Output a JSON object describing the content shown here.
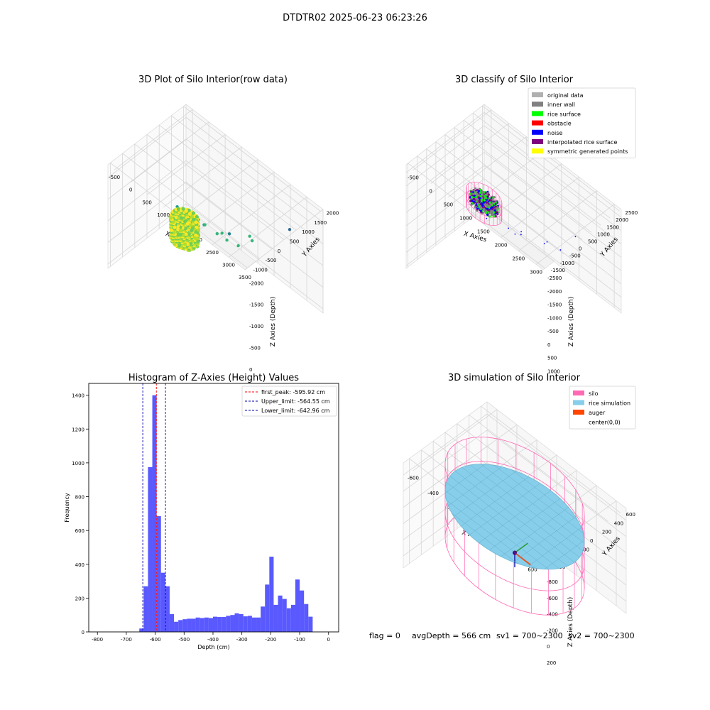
{
  "figure": {
    "title": "DTDTR02 2025-06-23 06:23:26",
    "status": {
      "flag": "flag = 0",
      "avg_depth": "avgDepth = 566 cm",
      "sv1": "sv1 = 700~2300",
      "sv2": "sv2 = 700~2300"
    }
  },
  "chart_data": [
    {
      "type": "scatter",
      "projection": "3d",
      "title": "3D Plot of Silo Interior(row data)",
      "xlabel": "X Axies",
      "ylabel": "Y Axies",
      "zlabel": "Z Axies (Depth)",
      "x_ticks": [
        "-500",
        "0",
        "500",
        "1000",
        "1500",
        "2000",
        "2500",
        "3000",
        "3500"
      ],
      "y_ticks": [
        "-1000",
        "-500",
        "0",
        "500",
        "1000",
        "1500",
        "2000"
      ],
      "z_ticks": [
        "-2000",
        "-1500",
        "-1000",
        "-500",
        "0"
      ],
      "xlim": [
        -700,
        3500
      ],
      "ylim": [
        -1100,
        2100
      ],
      "zlim": [
        -2300,
        100
      ],
      "colormap": [
        "#fde725",
        "#b5de2b",
        "#6ece58",
        "#35b779",
        "#1f9e89",
        "#26828e",
        "#31688e"
      ],
      "points": [
        {
          "x": 1200,
          "y": 300,
          "z": -1400
        },
        {
          "x": 1450,
          "y": 500,
          "z": -1250
        },
        {
          "x": 1600,
          "y": 700,
          "z": -1100
        },
        {
          "x": 1800,
          "y": 900,
          "z": -1000
        },
        {
          "x": 2000,
          "y": 1200,
          "z": -1100
        },
        {
          "x": 1400,
          "y": -200,
          "z": -1700
        },
        {
          "x": 2200,
          "y": 0,
          "z": -1900
        },
        {
          "x": 3300,
          "y": 1000,
          "z": -2200
        },
        {
          "x": 600,
          "y": 0,
          "z": -1600
        },
        {
          "x": 900,
          "y": 300,
          "z": -1300
        },
        {
          "x": 1300,
          "y": 900,
          "z": -1000
        },
        {
          "x": 1700,
          "y": 1500,
          "z": -900
        },
        {
          "x": 1000,
          "y": 600,
          "z": -1150
        },
        {
          "x": 1100,
          "y": 200,
          "z": -1500
        }
      ]
    },
    {
      "type": "scatter",
      "projection": "3d",
      "title": "3D classify of Silo Interior",
      "xlabel": "X Axies",
      "ylabel": "Y Axies",
      "zlabel": "Z Axies (Depth)",
      "x_ticks": [
        "-500",
        "0",
        "500",
        "1000",
        "1500",
        "2000",
        "2500",
        "3000"
      ],
      "y_ticks": [
        "-1500",
        "-1000",
        "-500",
        "0",
        "500",
        "1000",
        "1500",
        "2000",
        "2500"
      ],
      "z_ticks": [
        "-2500",
        "-2000",
        "-1500",
        "-1000",
        "-500",
        "0",
        "500",
        "1000"
      ],
      "xlim": [
        -700,
        3200
      ],
      "ylim": [
        -1600,
        2600
      ],
      "zlim": [
        -2800,
        1100
      ],
      "legend_position": "top-right",
      "legend": [
        {
          "label": "original data",
          "color": "#b0b0b0"
        },
        {
          "label": "inner wall",
          "color": "#808080"
        },
        {
          "label": "rice surface",
          "color": "#00ff00"
        },
        {
          "label": "obstacle",
          "color": "#ff0000"
        },
        {
          "label": "noise",
          "color": "#0000ff"
        },
        {
          "label": "interpolated rice surface",
          "color": "#800080"
        },
        {
          "label": "symmetric generated points",
          "color": "#ffff00"
        }
      ],
      "noise_points": [
        {
          "x": 900,
          "y": -300,
          "z": -1700
        },
        {
          "x": 1500,
          "y": 100,
          "z": -1500
        },
        {
          "x": 2200,
          "y": 500,
          "z": -1700
        },
        {
          "x": 2900,
          "y": 700,
          "z": -2500
        },
        {
          "x": 1300,
          "y": 800,
          "z": -900
        },
        {
          "x": 1700,
          "y": 1300,
          "z": -700
        },
        {
          "x": 1200,
          "y": 1000,
          "z": -800
        },
        {
          "x": 2000,
          "y": 1600,
          "z": -600
        },
        {
          "x": 700,
          "y": 200,
          "z": -1300
        },
        {
          "x": 1100,
          "y": 500,
          "z": -1100
        }
      ]
    },
    {
      "type": "bar",
      "title": "Histogram of Z-Axies (Height) Values",
      "xlabel": "Depth (cm)",
      "ylabel": "Frequency",
      "xlim": [
        -830,
        35
      ],
      "ylim": [
        0,
        1470
      ],
      "x_ticks": [
        -800,
        -700,
        -600,
        -500,
        -400,
        -300,
        -200,
        -100,
        0
      ],
      "y_ticks": [
        0,
        200,
        400,
        600,
        800,
        1000,
        1200,
        1400
      ],
      "bar_color": "#5050ff",
      "bin_start": -655,
      "bin_width": 15,
      "values": [
        20,
        270,
        975,
        1400,
        685,
        350,
        270,
        105,
        60,
        70,
        75,
        78,
        78,
        85,
        82,
        85,
        82,
        90,
        88,
        88,
        95,
        100,
        110,
        105,
        92,
        95,
        85,
        85,
        150,
        280,
        445,
        160,
        215,
        195,
        140,
        160,
        310,
        245,
        165,
        90
      ],
      "lines": [
        {
          "label": "first_peak: -595.92 cm",
          "value": -595.92,
          "color": "#ff0000"
        },
        {
          "label": "Upper_limit: -564.55 cm",
          "value": -564.55,
          "color": "#0000aa"
        },
        {
          "label": "Lower_limit: -642.96 cm",
          "value": -642.96,
          "color": "#0000aa"
        }
      ],
      "legend_position": "top-right"
    },
    {
      "type": "surface",
      "projection": "3d",
      "title": "3D simulation of Silo Interior",
      "xlabel": "X Axies",
      "ylabel": "Y Axies",
      "zlabel": "Z Axies (Depth)",
      "x_ticks": [
        "-600",
        "-400",
        "-200",
        "0",
        "200",
        "400",
        "600"
      ],
      "y_ticks": [
        "-600",
        "-400",
        "-200",
        "0",
        "200",
        "400",
        "600"
      ],
      "z_ticks": [
        "-800",
        "-600",
        "-400",
        "-200",
        "0",
        "200"
      ],
      "xlim": [
        -700,
        700
      ],
      "ylim": [
        -700,
        700
      ],
      "zlim": [
        -950,
        350
      ],
      "silo_radius": 600,
      "silo_z": [
        -900,
        0
      ],
      "rice_depth": -566,
      "legend_position": "top-right",
      "legend": [
        {
          "label": "silo",
          "color": "#ff69b4"
        },
        {
          "label": "rice simulation",
          "color": "#87ceeb"
        },
        {
          "label": "auger",
          "color": "#ff4500"
        },
        {
          "label": "center(0,0)",
          "color": "#ffffff"
        }
      ]
    }
  ]
}
